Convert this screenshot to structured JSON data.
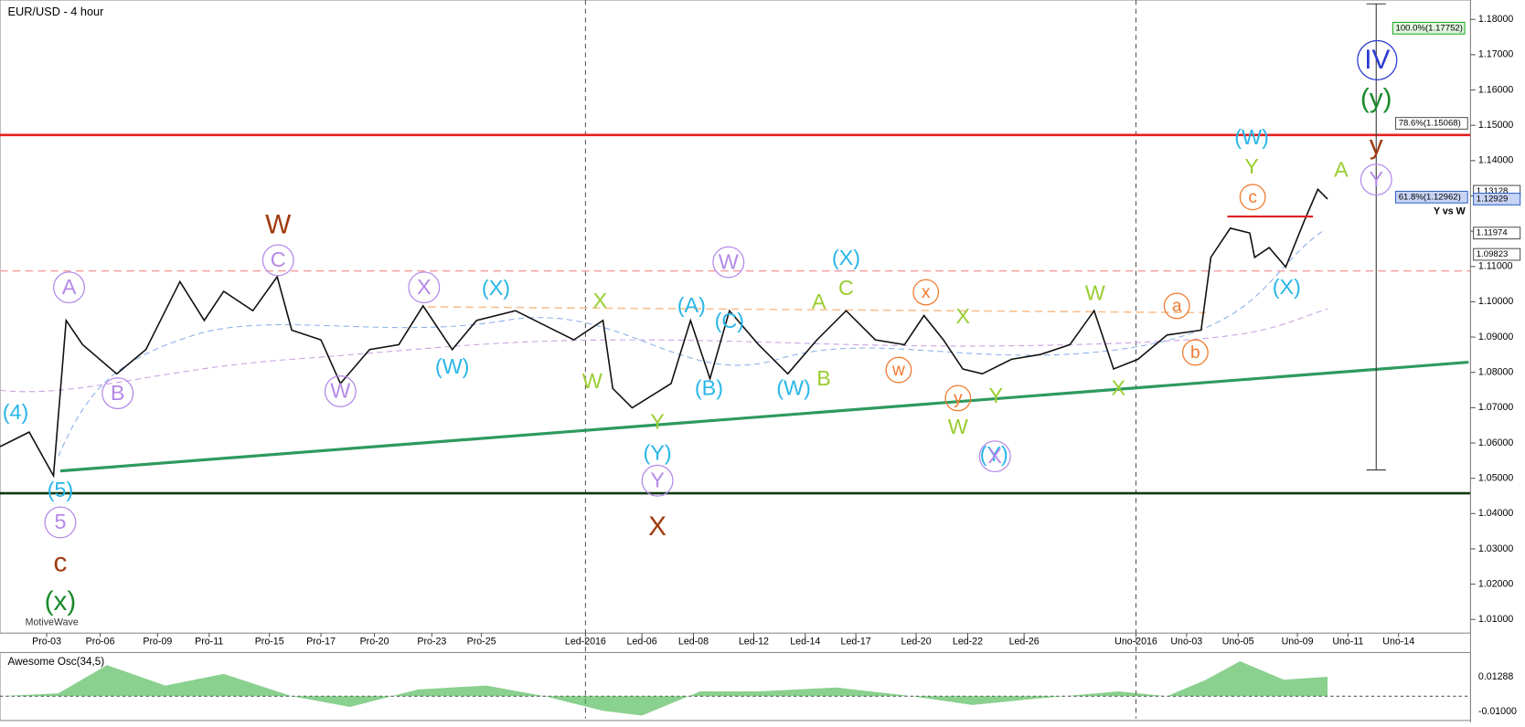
{
  "window": {
    "title": "EUR/USD - 4 hour",
    "watermark": "MotiveWave"
  },
  "price_axis": {
    "labels": [
      "1.18000",
      "1.17000",
      "1.16000",
      "1.15000",
      "1.14000",
      "1.13000",
      "1.12000",
      "1.11000",
      "1.10000",
      "1.09000",
      "1.08000",
      "1.07000",
      "1.06000",
      "1.05000",
      "1.04000",
      "1.03000",
      "1.02000",
      "1.01000"
    ]
  },
  "price_tags": [
    "100.0%(1.17752)",
    "78.6%(1.15068)",
    "1.13128",
    "61.8%(1.12962)",
    "1.12929",
    "1.11974",
    "1.09823"
  ],
  "annotation": "Y vs W",
  "date_axis": [
    "Pro-03",
    "Pro-06",
    "Pro-09",
    "Pro-11",
    "Pro-15",
    "Pro-17",
    "Pro-20",
    "Pro-23",
    "Pro-25",
    "Led-2016",
    "Led-06",
    "Led-08",
    "Led-12",
    "Led-14",
    "Led-17",
    "Led-20",
    "Led-22",
    "Led-26",
    "Uno-2016",
    "Uno-03",
    "Uno-05",
    "Uno-09",
    "Uno-11",
    "Uno-14"
  ],
  "waves": [
    "(4)",
    "(5)",
    "5",
    "c",
    "(x)",
    "A",
    "B",
    "W",
    "C",
    "W",
    "X",
    "(W)",
    "(X)",
    "X",
    "W",
    "Y",
    "(Y)",
    "Y",
    "X",
    "(A)",
    "(B)",
    "W",
    "(C)",
    "(W)",
    "A",
    "B",
    "(X)",
    "C",
    "x",
    "w",
    "y",
    "X",
    "W",
    "(Y)",
    "Y",
    "X",
    "W",
    "X",
    "a",
    "b",
    "(W)",
    "Y",
    "c",
    "(X)",
    "A",
    "IV",
    "(y)",
    "y",
    "Y"
  ],
  "oscillator": {
    "title": "Awesome Osc(34,5)",
    "labels": [
      "0.01288",
      "-0.01000"
    ]
  }
}
